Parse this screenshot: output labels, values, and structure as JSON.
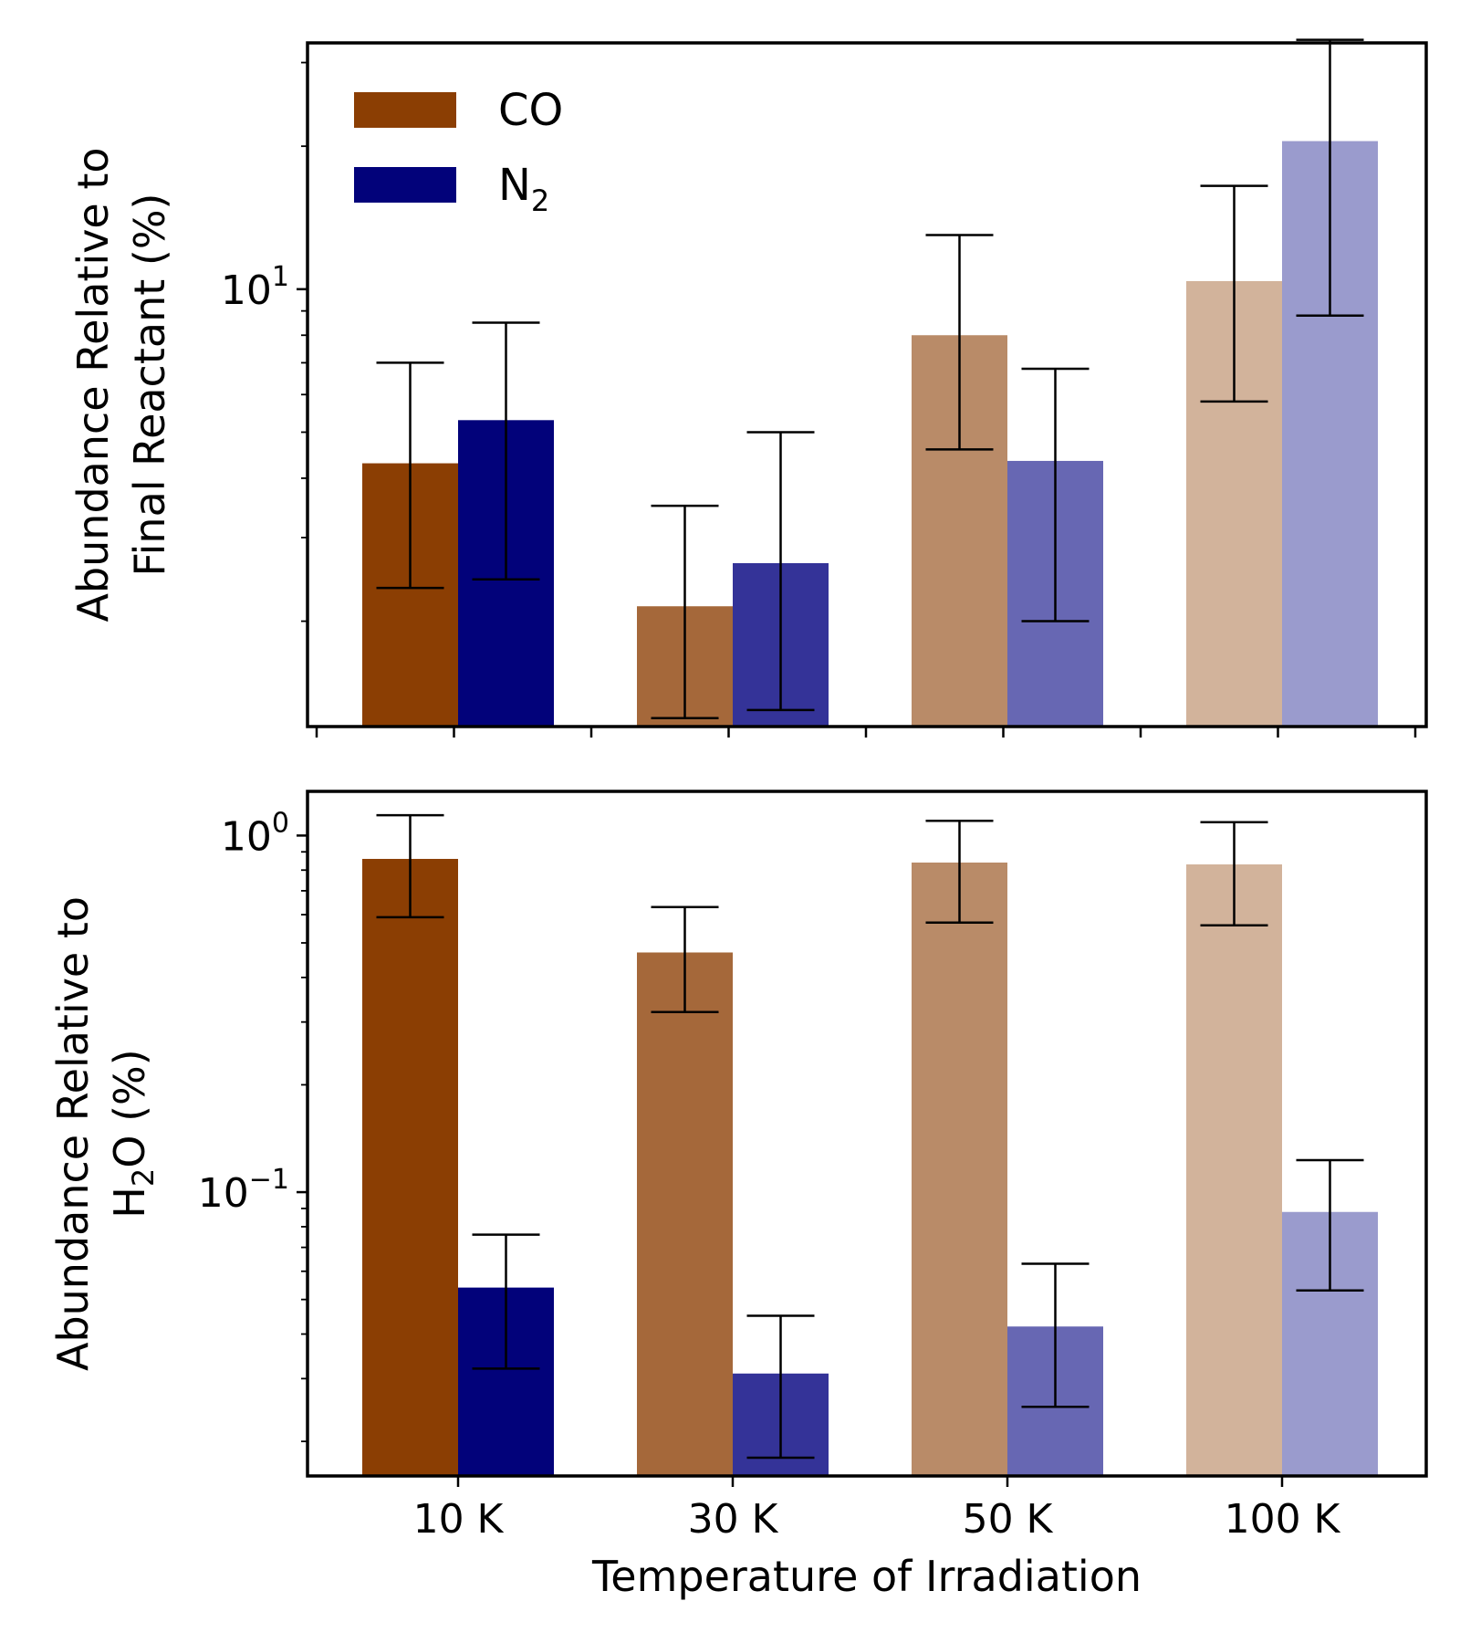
{
  "chart_data": {
    "type": "bar",
    "xlabel": "Temperature of Irradiation",
    "categories": [
      "10 K",
      "30 K",
      "50 K",
      "100 K"
    ],
    "legend": {
      "placement": "top-left",
      "entries": [
        {
          "label": "CO",
          "base": "CO",
          "sub": "",
          "color": "#8B3E03"
        },
        {
          "label": "N2",
          "base": "N",
          "sub": "2",
          "color": "#02027A"
        }
      ]
    },
    "panels": [
      {
        "ylabel": [
          "Abundance Relative to",
          "Final Reactant (%)"
        ],
        "yscale": "log",
        "ylim": [
          1.2,
          33
        ],
        "yticks": [
          {
            "value": 10,
            "base": "10",
            "exp": "1"
          }
        ],
        "series": [
          {
            "name": "CO",
            "values": [
              4.3,
              2.15,
              8.0,
              10.4
            ],
            "err_low": [
              2.35,
              1.25,
              4.6,
              5.8
            ],
            "err_high": [
              7.0,
              3.5,
              13.0,
              16.5
            ],
            "colors": [
              "#8B3E03",
              "#A5683A",
              "#B98B68",
              "#D2B39B"
            ]
          },
          {
            "name": "N2",
            "values": [
              5.3,
              2.65,
              4.35,
              20.5
            ],
            "err_low": [
              2.45,
              1.3,
              2.0,
              8.8
            ],
            "err_high": [
              8.5,
              5.0,
              6.8,
              33.5
            ],
            "colors": [
              "#02027A",
              "#343398",
              "#6767B3",
              "#9A9BCD"
            ]
          }
        ]
      },
      {
        "ylabel": [
          "Abundance Relative to",
          "H2O (%)"
        ],
        "ylabel_sub": {
          "base": "H",
          "sub": "2",
          "rest": "O (%)"
        },
        "yscale": "log",
        "ylim": [
          0.016,
          1.33
        ],
        "yticks": [
          {
            "value": 1.0,
            "base": "10",
            "exp": "0"
          },
          {
            "value": 0.1,
            "base": "10",
            "exp": "−1"
          }
        ],
        "series": [
          {
            "name": "CO",
            "values": [
              0.86,
              0.47,
              0.84,
              0.83
            ],
            "err_low": [
              0.59,
              0.32,
              0.57,
              0.56
            ],
            "err_high": [
              1.14,
              0.63,
              1.1,
              1.09
            ],
            "colors": [
              "#8B3E03",
              "#A5683A",
              "#B98B68",
              "#D2B39B"
            ]
          },
          {
            "name": "N2",
            "values": [
              0.054,
              0.031,
              0.042,
              0.088
            ],
            "err_low": [
              0.032,
              0.018,
              0.025,
              0.053
            ],
            "err_high": [
              0.076,
              0.045,
              0.063,
              0.123
            ],
            "colors": [
              "#02027A",
              "#343398",
              "#6767B3",
              "#9A9BCD"
            ]
          }
        ]
      }
    ]
  }
}
